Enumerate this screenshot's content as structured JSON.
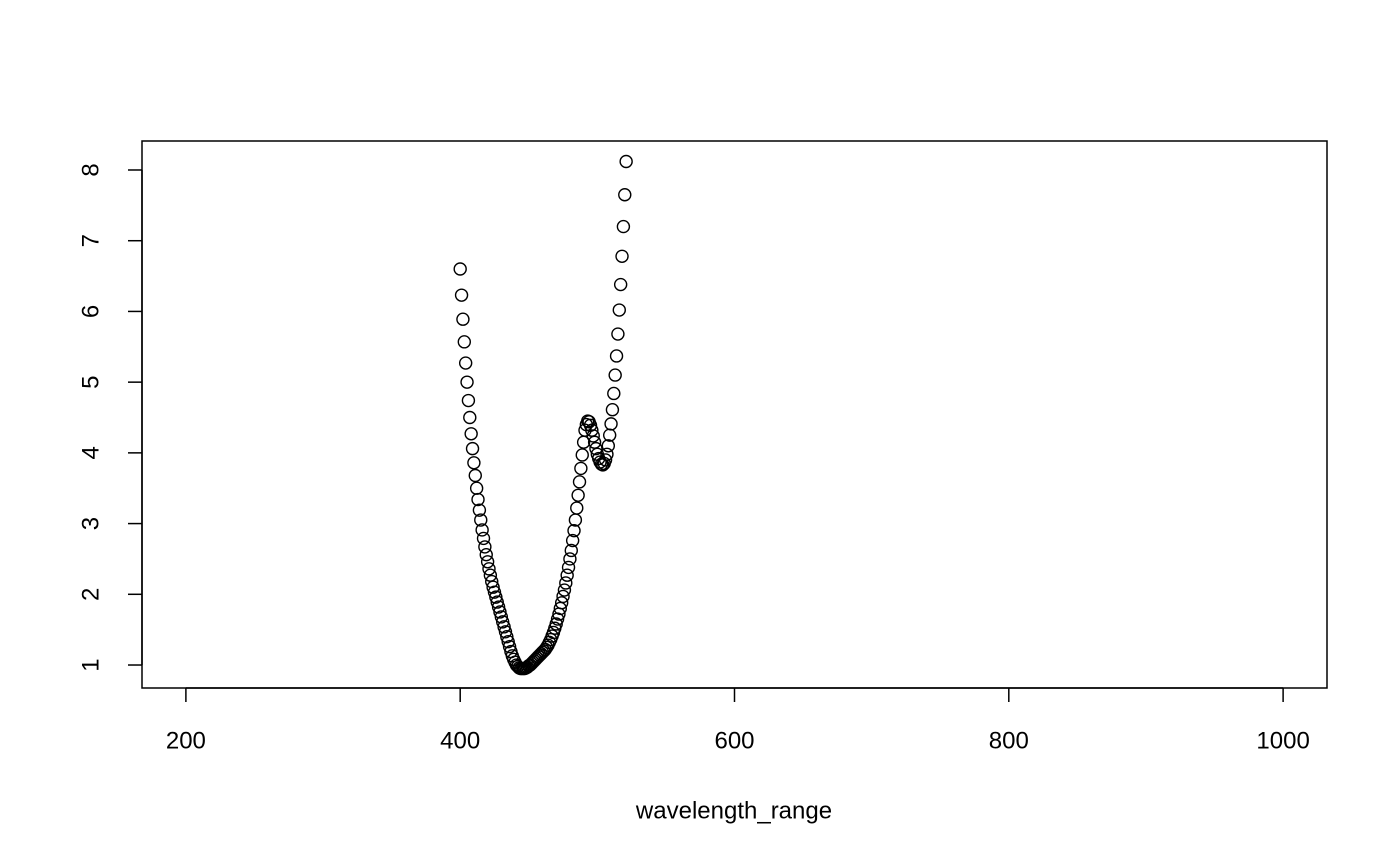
{
  "chart_data": {
    "type": "scatter",
    "xlabel": "wavelength_range",
    "xlim": [
      168,
      1032
    ],
    "ylim": [
      0.675,
      8.41
    ],
    "xticks": [
      200,
      400,
      600,
      800,
      1000
    ],
    "yticks": [
      1,
      2,
      3,
      4,
      5,
      6,
      7,
      8
    ],
    "color": "#000000",
    "x": [
      400,
      401,
      402,
      403,
      404,
      405,
      406,
      407,
      408,
      409,
      410,
      411,
      412,
      413,
      414,
      415,
      416,
      417,
      418,
      419,
      420,
      421,
      422,
      423,
      424,
      425,
      426,
      427,
      428,
      429,
      430,
      431,
      432,
      433,
      434,
      435,
      436,
      437,
      438,
      439,
      440,
      441,
      442,
      443,
      444,
      445,
      446,
      447,
      448,
      449,
      450,
      451,
      452,
      453,
      454,
      455,
      456,
      457,
      458,
      459,
      460,
      461,
      462,
      463,
      464,
      465,
      466,
      467,
      468,
      469,
      470,
      471,
      472,
      473,
      474,
      475,
      476,
      477,
      478,
      479,
      480,
      481,
      482,
      483,
      484,
      485,
      486,
      487,
      488,
      489,
      490,
      491,
      492,
      493,
      494,
      495,
      496,
      497,
      498,
      499,
      500,
      501,
      502,
      503,
      504,
      505,
      506,
      507,
      508,
      509,
      510,
      511,
      512,
      513,
      514,
      515,
      516,
      517,
      518,
      519,
      520,
      521
    ],
    "values": [
      6.6,
      6.23,
      5.89,
      5.57,
      5.27,
      5.0,
      4.74,
      4.5,
      4.27,
      4.06,
      3.86,
      3.68,
      3.5,
      3.34,
      3.19,
      3.05,
      2.91,
      2.79,
      2.67,
      2.56,
      2.46,
      2.36,
      2.27,
      2.18,
      2.1,
      2.03,
      1.96,
      1.89,
      1.82,
      1.75,
      1.68,
      1.61,
      1.54,
      1.47,
      1.4,
      1.33,
      1.26,
      1.19,
      1.13,
      1.08,
      1.04,
      1.0,
      0.98,
      0.96,
      0.95,
      0.95,
      0.95,
      0.95,
      0.96,
      0.97,
      0.99,
      1.0,
      1.02,
      1.04,
      1.06,
      1.08,
      1.1,
      1.12,
      1.14,
      1.16,
      1.18,
      1.2,
      1.22,
      1.25,
      1.28,
      1.32,
      1.36,
      1.41,
      1.46,
      1.52,
      1.58,
      1.65,
      1.72,
      1.8,
      1.88,
      1.97,
      2.06,
      2.16,
      2.27,
      2.38,
      2.5,
      2.62,
      2.76,
      2.9,
      3.05,
      3.22,
      3.4,
      3.59,
      3.78,
      3.97,
      4.15,
      4.32,
      4.4,
      4.45,
      4.44,
      4.39,
      4.32,
      4.24,
      4.15,
      4.06,
      3.98,
      3.92,
      3.87,
      3.84,
      3.83,
      3.85,
      3.9,
      3.98,
      4.1,
      4.25,
      4.41,
      4.61,
      4.84,
      5.1,
      5.37,
      5.68,
      6.02,
      6.38,
      6.78,
      7.2,
      7.65,
      8.12
    ]
  }
}
